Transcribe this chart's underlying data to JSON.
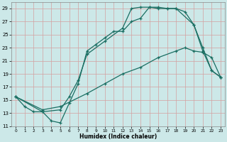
{
  "xlabel": "Humidex (Indice chaleur)",
  "bg_color": "#cce8e8",
  "grid_color": "#d4a0a0",
  "line_color": "#1a6e62",
  "xlim": [
    -0.5,
    23.5
  ],
  "ylim": [
    11,
    30
  ],
  "xticks": [
    0,
    1,
    2,
    3,
    4,
    5,
    6,
    7,
    8,
    9,
    10,
    11,
    12,
    13,
    14,
    15,
    16,
    17,
    18,
    19,
    20,
    21,
    22,
    23
  ],
  "yticks": [
    11,
    13,
    15,
    17,
    19,
    21,
    23,
    25,
    27,
    29
  ],
  "curve1_x": [
    0,
    1,
    2,
    3,
    4,
    5,
    6,
    7,
    8,
    9,
    10,
    11,
    12,
    13,
    14,
    15,
    16,
    17,
    18,
    19,
    20,
    21,
    22,
    23
  ],
  "curve1_y": [
    15.5,
    14.0,
    13.2,
    13.2,
    11.8,
    11.5,
    14.5,
    17.5,
    22.5,
    23.5,
    24.5,
    25.5,
    25.5,
    27.0,
    27.5,
    29.2,
    29.2,
    29.0,
    29.0,
    28.5,
    26.5,
    23.0,
    19.5,
    18.5
  ],
  "curve2_x": [
    0,
    3,
    5,
    6,
    7,
    8,
    10,
    12,
    13,
    14,
    15,
    16,
    17,
    18,
    20,
    21,
    22,
    23
  ],
  "curve2_y": [
    15.5,
    13.2,
    13.5,
    15.5,
    18.0,
    22.0,
    24.0,
    26.0,
    29.0,
    29.2,
    29.2,
    29.0,
    29.0,
    29.0,
    26.5,
    22.5,
    19.5,
    18.5
  ],
  "curve3_x": [
    0,
    3,
    5,
    8,
    10,
    12,
    14,
    16,
    18,
    19,
    20,
    21,
    22,
    23
  ],
  "curve3_y": [
    15.5,
    13.5,
    14.0,
    16.0,
    17.5,
    19.0,
    20.0,
    21.5,
    22.5,
    23.0,
    22.5,
    22.3,
    21.5,
    18.5
  ]
}
